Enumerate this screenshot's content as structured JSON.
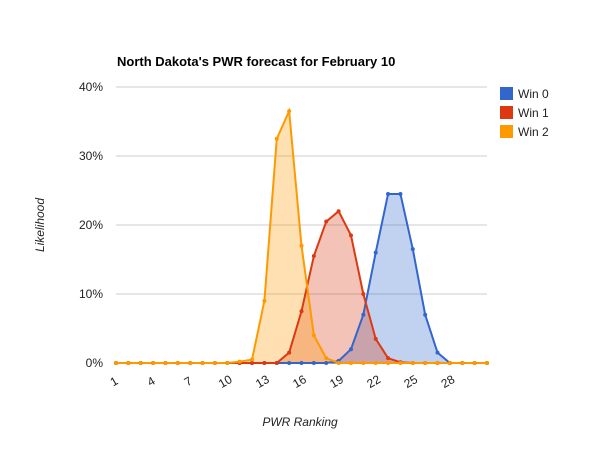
{
  "chart_data": {
    "type": "area",
    "title": "North Dakota's PWR forecast for February 10",
    "xlabel": "PWR Ranking",
    "ylabel": "Likelihood",
    "x": [
      1,
      2,
      3,
      4,
      5,
      6,
      7,
      8,
      9,
      10,
      11,
      12,
      13,
      14,
      15,
      16,
      17,
      18,
      19,
      20,
      21,
      22,
      23,
      24,
      25,
      26,
      27,
      28,
      29,
      30,
      31
    ],
    "x_ticks": [
      "1",
      "4",
      "7",
      "10",
      "13",
      "16",
      "19",
      "22",
      "25",
      "28"
    ],
    "x_tick_values": [
      1,
      4,
      7,
      10,
      13,
      16,
      19,
      22,
      25,
      28
    ],
    "y_ticks": [
      "0%",
      "10%",
      "20%",
      "30%",
      "40%"
    ],
    "y_tick_values": [
      0,
      10,
      20,
      30,
      40
    ],
    "xlim": [
      1,
      31
    ],
    "ylim": [
      0,
      40
    ],
    "grid": true,
    "legend": "right",
    "series": [
      {
        "name": "Win 0",
        "color": "#3366cc",
        "values": [
          0,
          0,
          0,
          0,
          0,
          0,
          0,
          0,
          0,
          0,
          0,
          0,
          0,
          0,
          0,
          0,
          0,
          0,
          0.3,
          2,
          7,
          16,
          24.5,
          24.5,
          16.5,
          7,
          1.5,
          0,
          0,
          0,
          0
        ]
      },
      {
        "name": "Win 1",
        "color": "#dc3912",
        "values": [
          0,
          0,
          0,
          0,
          0,
          0,
          0,
          0,
          0,
          0,
          0,
          0,
          0,
          0,
          1.5,
          7.5,
          15.5,
          20.5,
          22,
          18.5,
          10,
          3.5,
          0.7,
          0.1,
          0,
          0,
          0,
          0,
          0,
          0,
          0
        ]
      },
      {
        "name": "Win 2",
        "color": "#ff9900",
        "values": [
          0,
          0,
          0,
          0,
          0,
          0,
          0,
          0,
          0,
          0,
          0.2,
          0.5,
          9,
          32.5,
          36.5,
          17,
          4,
          0.7,
          0,
          0,
          0,
          0,
          0,
          0,
          0,
          0,
          0,
          0,
          0,
          0,
          0
        ]
      }
    ]
  }
}
